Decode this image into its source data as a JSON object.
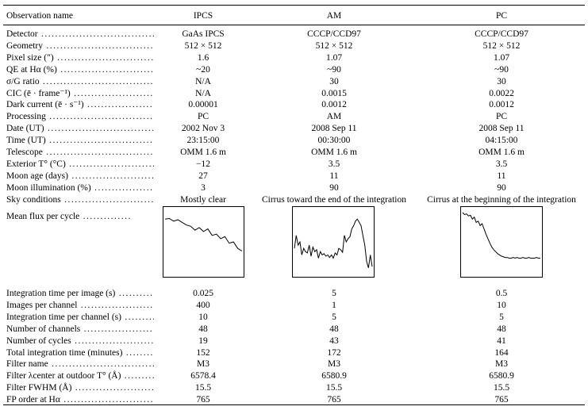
{
  "header": {
    "label": "Observation name",
    "columns": [
      "IPCS",
      "AM",
      "PC"
    ]
  },
  "rows_top": [
    {
      "label": "Detector",
      "values": [
        "GaAs IPCS",
        "CCCP/CCD97",
        "CCCP/CCD97"
      ]
    },
    {
      "label": "Geometry",
      "values": [
        "512 × 512",
        "512 × 512",
        "512 × 512"
      ]
    },
    {
      "label": "Pixel size (″)",
      "values": [
        "1.6",
        "1.07",
        "1.07"
      ]
    },
    {
      "label": "QE at Hα (%)",
      "values": [
        "~20",
        "~90",
        "~90"
      ]
    },
    {
      "label": "σ/G ratio",
      "values": [
        "N/A",
        "30",
        "30"
      ]
    },
    {
      "label": "CIC (ē · frame⁻¹)",
      "values": [
        "N/A",
        "0.0015",
        "0.0022"
      ]
    },
    {
      "label": "Dark current (ē · s⁻¹)",
      "values": [
        "0.00001",
        "0.0012",
        "0.0012"
      ]
    },
    {
      "label": "Processing",
      "values": [
        "PC",
        "AM",
        "PC"
      ]
    },
    {
      "label": "Date (UT)",
      "values": [
        "2002 Nov 3",
        "2008 Sep 11",
        "2008 Sep 11"
      ]
    },
    {
      "label": "Time (UT)",
      "values": [
        "23:15:00",
        "00:30:00",
        "04:15:00"
      ]
    },
    {
      "label": "Telescope",
      "values": [
        "OMM 1.6 m",
        "OMM 1.6 m",
        "OMM 1.6 m"
      ]
    },
    {
      "label": "Exterior T° (°C)",
      "values": [
        "−12",
        "3.5",
        "3.5"
      ]
    },
    {
      "label": "Moon age (days)",
      "values": [
        "27",
        "11",
        "11"
      ]
    },
    {
      "label": "Moon illumination (%)",
      "values": [
        "3",
        "90",
        "90"
      ]
    },
    {
      "label": "Sky conditions",
      "values": [
        "Mostly clear",
        "Cirrus toward the end of the integration",
        "Cirrus at the beginning of the integration"
      ]
    }
  ],
  "flux_label": "Mean flux per cycle",
  "chart_data": [
    {
      "type": "line",
      "series": [
        {
          "values": [
            0.85,
            0.86,
            0.82,
            0.84,
            0.8,
            0.76,
            0.74,
            0.68,
            0.72,
            0.66,
            0.7,
            0.6,
            0.62,
            0.55,
            0.58,
            0.48,
            0.5,
            0.4,
            0.36
          ]
        }
      ]
    },
    {
      "type": "line",
      "series": [
        {
          "values": [
            0.4,
            0.6,
            0.45,
            0.5,
            0.3,
            0.4,
            0.35,
            0.33,
            0.45,
            0.28,
            0.42,
            0.35,
            0.38,
            0.25,
            0.35,
            0.3,
            0.32,
            0.28,
            0.3,
            0.26,
            0.3,
            0.25,
            0.33,
            0.3,
            0.4,
            0.38,
            0.34,
            0.6,
            0.5,
            0.55,
            0.58,
            0.7,
            0.75,
            0.82,
            0.85,
            0.8,
            0.75,
            0.6,
            0.45,
            0.2,
            0.1,
            0.3,
            0.12
          ]
        }
      ]
    },
    {
      "type": "line",
      "series": [
        {
          "values": [
            0.95,
            0.92,
            0.93,
            0.9,
            0.91,
            0.85,
            0.88,
            0.8,
            0.82,
            0.75,
            0.78,
            0.7,
            0.62,
            0.55,
            0.48,
            0.42,
            0.38,
            0.35,
            0.32,
            0.3,
            0.28,
            0.27,
            0.26,
            0.26,
            0.25,
            0.25,
            0.26,
            0.25,
            0.26,
            0.25,
            0.25,
            0.26,
            0.25,
            0.25,
            0.26,
            0.25,
            0.25,
            0.25,
            0.26,
            0.25,
            0.25
          ]
        }
      ]
    }
  ],
  "rows_bottom": [
    {
      "label": "Integration time per image (s)",
      "values": [
        "0.025",
        "5",
        "0.5"
      ]
    },
    {
      "label": "Images per channel",
      "values": [
        "400",
        "1",
        "10"
      ]
    },
    {
      "label": "Integration time per channel (s)",
      "values": [
        "10",
        "5",
        "5"
      ]
    },
    {
      "label": "Number of channels",
      "values": [
        "48",
        "48",
        "48"
      ]
    },
    {
      "label": "Number of cycles",
      "values": [
        "19",
        "43",
        "41"
      ]
    },
    {
      "label": "Total integration time (minutes)",
      "values": [
        "152",
        "172",
        "164"
      ]
    },
    {
      "label": "Filter name",
      "values": [
        "M3",
        "M3",
        "M3"
      ]
    },
    {
      "label": "Filter λcenter at outdoor T° (Å)",
      "values": [
        "6578.4",
        "6580.9",
        "6580.9"
      ]
    },
    {
      "label": "Filter FWHM (Å)",
      "values": [
        "15.5",
        "15.5",
        "15.5"
      ]
    },
    {
      "label": "FP order at Hα",
      "values": [
        "765",
        "765",
        "765"
      ]
    }
  ]
}
